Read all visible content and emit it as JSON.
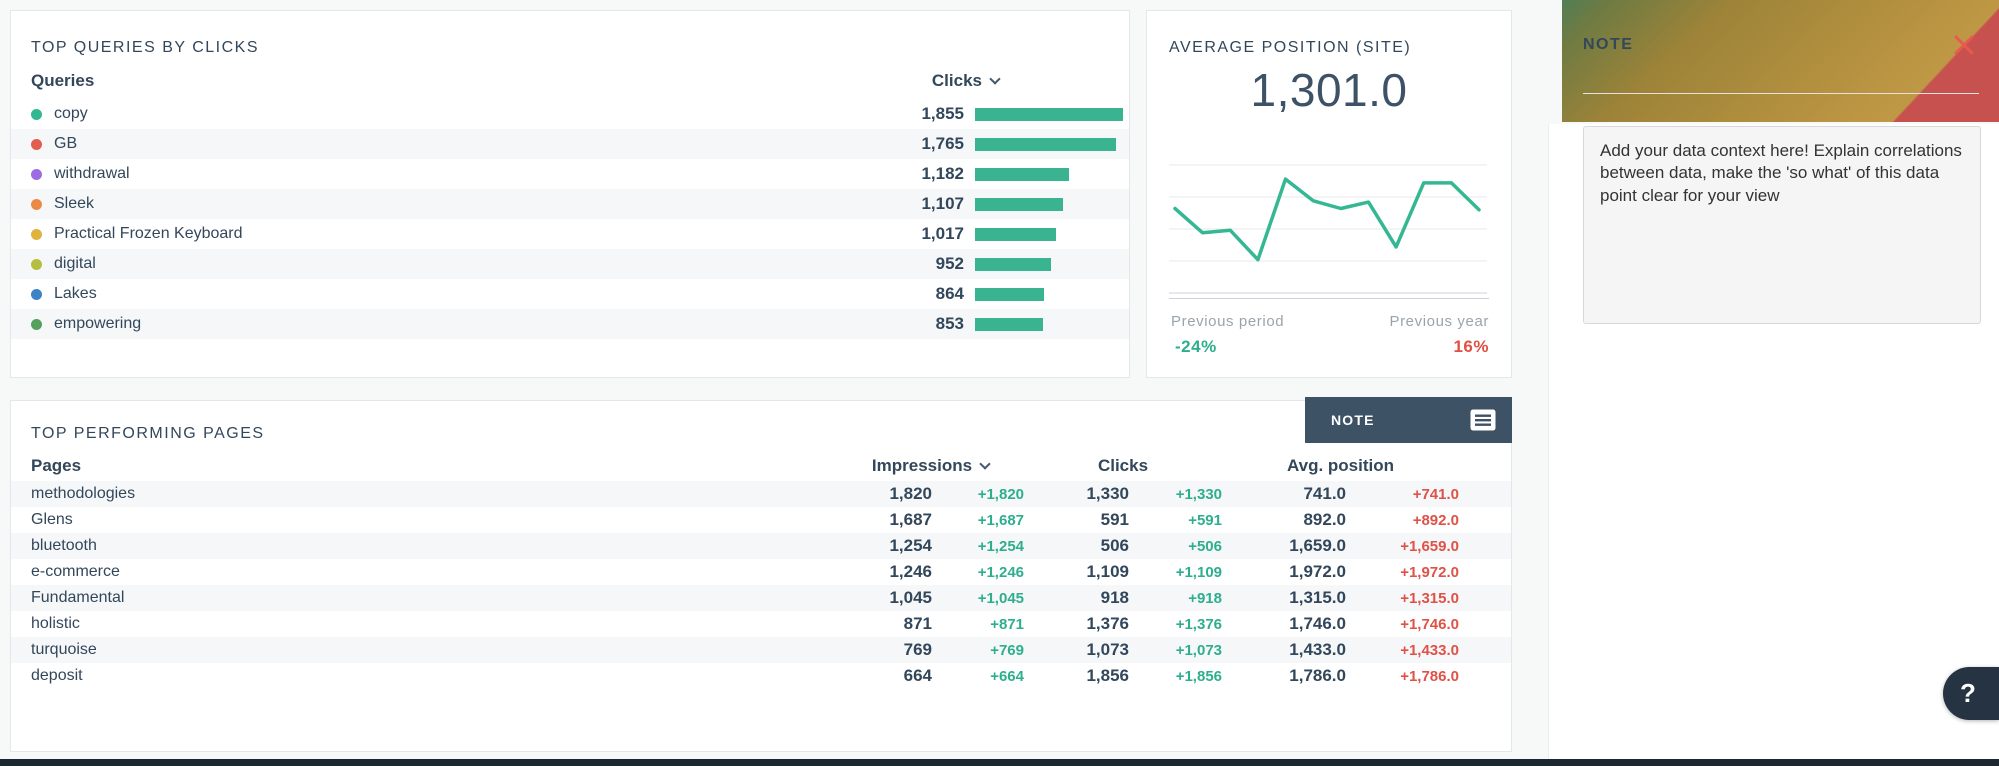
{
  "queries_panel": {
    "title": "TOP QUERIES BY CLICKS",
    "column_label": "Queries",
    "value_column_label": "Clicks",
    "bar_color": "#3ab391",
    "max_value": 1855,
    "rows": [
      {
        "label": "copy",
        "dot_color": "#31b890",
        "value": "1,855",
        "value_num": 1855
      },
      {
        "label": "GB",
        "dot_color": "#e25c50",
        "value": "1,765",
        "value_num": 1765
      },
      {
        "label": "withdrawal",
        "dot_color": "#9d6ce5",
        "value": "1,182",
        "value_num": 1182
      },
      {
        "label": "Sleek",
        "dot_color": "#eb8a44",
        "value": "1,107",
        "value_num": 1107
      },
      {
        "label": "Practical Frozen Keyboard",
        "dot_color": "#e0b23e",
        "value": "1,017",
        "value_num": 1017
      },
      {
        "label": "digital",
        "dot_color": "#b5bf3f",
        "value": "952",
        "value_num": 952
      },
      {
        "label": "Lakes",
        "dot_color": "#3d83c6",
        "value": "864",
        "value_num": 864
      },
      {
        "label": "empowering",
        "dot_color": "#55a05c",
        "value": "853",
        "value_num": 853
      }
    ]
  },
  "avg_position_panel": {
    "title": "AVERAGE POSITION (SITE)",
    "value": "1,301.0",
    "line_color": "#35b793",
    "grid_color": "#e6e9eb",
    "grid_bottom_color": "#ccd2d7",
    "previous_period_label": "Previous period",
    "previous_period_value": "-24%",
    "previous_period_color": "#2fae8e",
    "previous_year_label": "Previous year",
    "previous_year_value": "16%",
    "previous_year_color": "#e04f43",
    "sparkline_relative": [
      66,
      47,
      49,
      26,
      89,
      72,
      66,
      71,
      36,
      86,
      86,
      65
    ]
  },
  "pages_panel": {
    "title": "TOP PERFORMING PAGES",
    "note_button_label": "NOTE",
    "columns": {
      "pages": "Pages",
      "impressions": "Impressions",
      "clicks": "Clicks",
      "avg_position": "Avg. position"
    },
    "delta_green": "#2fae8e",
    "delta_red": "#de5247",
    "rows": [
      {
        "page": "methodologies",
        "impressions": "1,820",
        "impressions_delta": "+1,820",
        "clicks": "1,330",
        "clicks_delta": "+1,330",
        "avg_position": "741.0",
        "avg_position_delta": "+741.0"
      },
      {
        "page": "Glens",
        "impressions": "1,687",
        "impressions_delta": "+1,687",
        "clicks": "591",
        "clicks_delta": "+591",
        "avg_position": "892.0",
        "avg_position_delta": "+892.0"
      },
      {
        "page": "bluetooth",
        "impressions": "1,254",
        "impressions_delta": "+1,254",
        "clicks": "506",
        "clicks_delta": "+506",
        "avg_position": "1,659.0",
        "avg_position_delta": "+1,659.0"
      },
      {
        "page": "e-commerce",
        "impressions": "1,246",
        "impressions_delta": "+1,246",
        "clicks": "1,109",
        "clicks_delta": "+1,109",
        "avg_position": "1,972.0",
        "avg_position_delta": "+1,972.0"
      },
      {
        "page": "Fundamental",
        "impressions": "1,045",
        "impressions_delta": "+1,045",
        "clicks": "918",
        "clicks_delta": "+918",
        "avg_position": "1,315.0",
        "avg_position_delta": "+1,315.0"
      },
      {
        "page": "holistic",
        "impressions": "871",
        "impressions_delta": "+871",
        "clicks": "1,376",
        "clicks_delta": "+1,376",
        "avg_position": "1,746.0",
        "avg_position_delta": "+1,746.0"
      },
      {
        "page": "turquoise",
        "impressions": "769",
        "impressions_delta": "+769",
        "clicks": "1,073",
        "clicks_delta": "+1,073",
        "avg_position": "1,433.0",
        "avg_position_delta": "+1,433.0"
      },
      {
        "page": "deposit",
        "impressions": "664",
        "impressions_delta": "+664",
        "clicks": "1,856",
        "clicks_delta": "+1,856",
        "avg_position": "1,786.0",
        "avg_position_delta": "+1,786.0"
      }
    ]
  },
  "note_panel": {
    "title": "NOTE",
    "body": "Add your data context here! Explain correlations between data, make the 'so what' of this data point clear for your view",
    "close_color": "#e8594f"
  },
  "help": {
    "label": "?"
  },
  "chart_data": [
    {
      "type": "bar",
      "orientation": "horizontal",
      "title": "TOP QUERIES BY CLICKS",
      "categories": [
        "copy",
        "GB",
        "withdrawal",
        "Sleek",
        "Practical Frozen Keyboard",
        "digital",
        "Lakes",
        "empowering"
      ],
      "values": [
        1855,
        1765,
        1182,
        1107,
        1017,
        952,
        864,
        853
      ],
      "xlabel": "Clicks",
      "ylabel": "Queries",
      "xlim": [
        0,
        1855
      ],
      "grid": false,
      "legend": false
    },
    {
      "type": "line",
      "title": "AVERAGE POSITION (SITE)",
      "current_value": 1301.0,
      "x": [
        1,
        2,
        3,
        4,
        5,
        6,
        7,
        8,
        9,
        10,
        11,
        12
      ],
      "values_relative_pct_of_chart_height": [
        66,
        47,
        49,
        26,
        89,
        72,
        66,
        71,
        36,
        86,
        86,
        65
      ],
      "ylim": [
        0,
        100
      ],
      "grid": true,
      "gridlines": 5,
      "axis_labels": "none",
      "legend": false,
      "previous_period_change": "-24%",
      "previous_year_change": "16%"
    },
    {
      "type": "table",
      "title": "TOP PERFORMING PAGES",
      "columns": [
        "Pages",
        "Impressions",
        "Impressions change",
        "Clicks",
        "Clicks change",
        "Avg. position",
        "Avg. position change"
      ],
      "rows": [
        [
          "methodologies",
          1820,
          "+1,820",
          1330,
          "+1,330",
          741.0,
          "+741.0"
        ],
        [
          "Glens",
          1687,
          "+1,687",
          591,
          "+591",
          892.0,
          "+892.0"
        ],
        [
          "bluetooth",
          1254,
          "+1,254",
          506,
          "+506",
          1659.0,
          "+1,659.0"
        ],
        [
          "e-commerce",
          1246,
          "+1,246",
          1109,
          "+1,109",
          1972.0,
          "+1,972.0"
        ],
        [
          "Fundamental",
          1045,
          "+1,045",
          918,
          "+918",
          1315.0,
          "+1,315.0"
        ],
        [
          "holistic",
          871,
          "+871",
          1376,
          "+1,376",
          1746.0,
          "+1,746.0"
        ],
        [
          "turquoise",
          769,
          "+769",
          1073,
          "+1,073",
          1433.0,
          "+1,433.0"
        ],
        [
          "deposit",
          664,
          "+664",
          1856,
          "+1,856",
          1786.0,
          "+1,786.0"
        ]
      ]
    }
  ]
}
